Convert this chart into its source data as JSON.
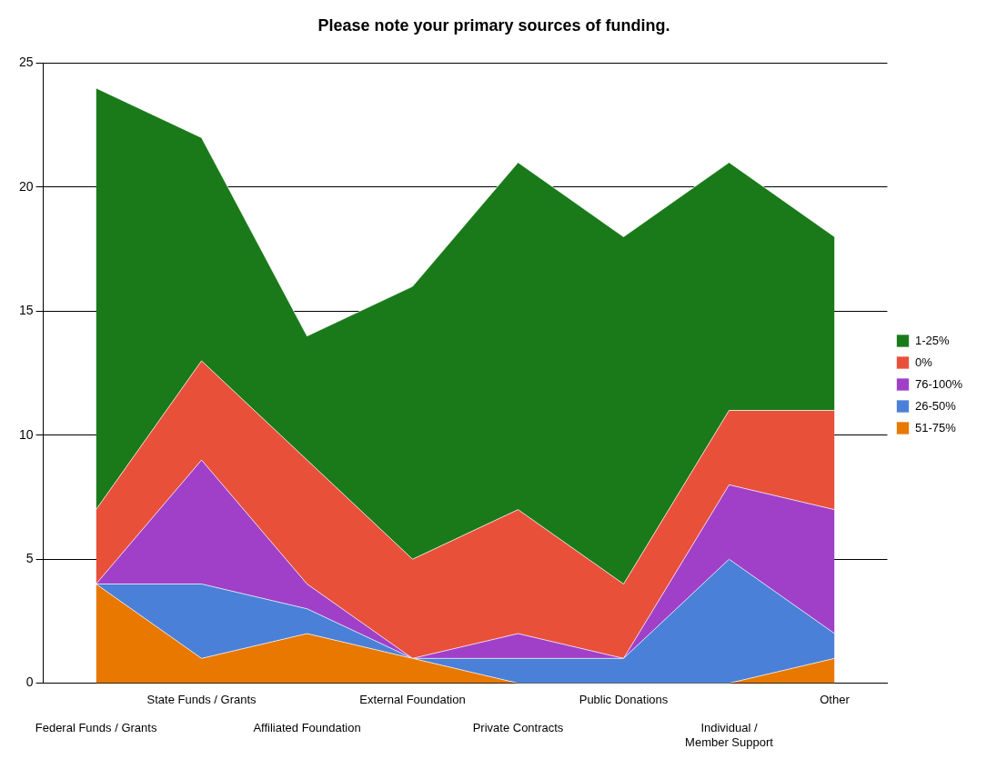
{
  "chart_data": {
    "type": "area",
    "title": "Please note your primary sources of funding.",
    "categories": [
      "Federal Funds / Grants",
      "State Funds / Grants",
      "Affiliated Foundation",
      "External Foundation",
      "Private Contracts",
      "Public Donations",
      "Individual /\nMember Support",
      "Other"
    ],
    "stacked": true,
    "ylim": [
      0,
      25
    ],
    "yticks": [
      0,
      5,
      10,
      15,
      20,
      25
    ],
    "grid": "y",
    "legend": "right",
    "series": [
      {
        "name": "51-75%",
        "color": "#e87800",
        "values": [
          4,
          1,
          2,
          1,
          0,
          0,
          0,
          1
        ]
      },
      {
        "name": "26-50%",
        "color": "#4a80d8",
        "values": [
          0,
          3,
          1,
          0,
          1,
          1,
          5,
          1
        ]
      },
      {
        "name": "76-100%",
        "color": "#a040c8",
        "values": [
          0,
          5,
          1,
          0,
          1,
          0,
          3,
          5
        ]
      },
      {
        "name": "0%",
        "color": "#e8503a",
        "values": [
          3,
          4,
          5,
          4,
          5,
          3,
          3,
          4
        ]
      },
      {
        "name": "1-25%",
        "color": "#1a7a1a",
        "values": [
          17,
          9,
          5,
          11,
          14,
          14,
          10,
          7
        ]
      }
    ]
  }
}
